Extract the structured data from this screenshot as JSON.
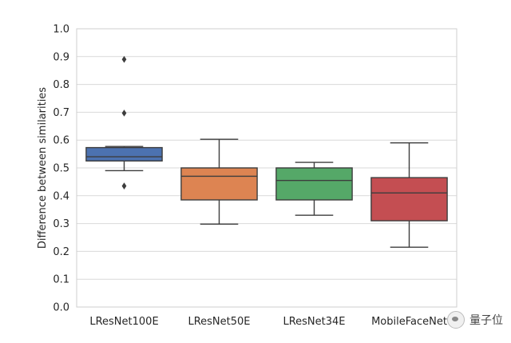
{
  "chart_data": {
    "type": "box",
    "ylabel": "Difference between similarities",
    "xlabel": "",
    "ylim": [
      0.0,
      1.0
    ],
    "yticks": [
      "0.0",
      "0.1",
      "0.2",
      "0.3",
      "0.4",
      "0.5",
      "0.6",
      "0.7",
      "0.8",
      "0.9",
      "1.0"
    ],
    "grid": true,
    "boxes": [
      {
        "category": "LResNet100E",
        "color": "#4c72b0",
        "whisker_low": 0.49,
        "q1": 0.525,
        "median": 0.54,
        "q3": 0.573,
        "whisker_high": 0.577,
        "outliers": [
          0.89,
          0.697,
          0.435
        ]
      },
      {
        "category": "LResNet50E",
        "color": "#dd8452",
        "whisker_low": 0.298,
        "q1": 0.385,
        "median": 0.47,
        "q3": 0.5,
        "whisker_high": 0.603,
        "outliers": []
      },
      {
        "category": "LResNet34E",
        "color": "#55a868",
        "whisker_low": 0.33,
        "q1": 0.385,
        "median": 0.455,
        "q3": 0.5,
        "whisker_high": 0.52,
        "outliers": []
      },
      {
        "category": "MobileFaceNet",
        "color": "#c44e52",
        "whisker_low": 0.215,
        "q1": 0.31,
        "median": 0.41,
        "q3": 0.465,
        "whisker_high": 0.59,
        "outliers": []
      }
    ]
  },
  "watermark": {
    "text": "量子位",
    "icon": "wechat-logo-icon"
  }
}
